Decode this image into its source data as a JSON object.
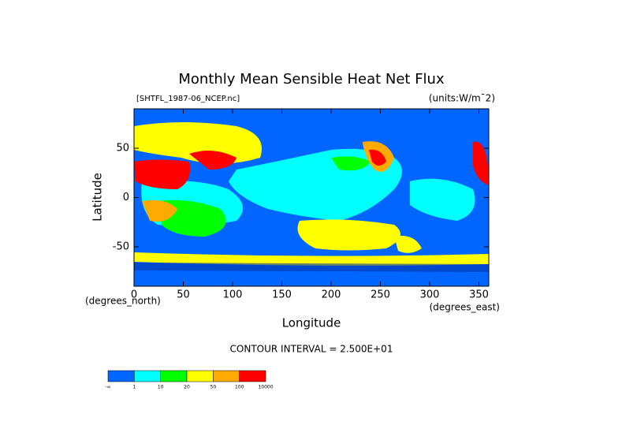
{
  "chart_data": {
    "type": "contour-map",
    "title": "Monthly Mean Sensible Heat Net Flux",
    "source": "[SHTFL_1987-06_NCEP.nc]",
    "units": "(units:W/m¯2)",
    "y_label": "Latitude",
    "x_label": "Longitude",
    "y_unit": "(degrees_north)",
    "x_unit": "(degrees_east)",
    "xlim": [
      0,
      360
    ],
    "ylim": [
      -90,
      90
    ],
    "xticks": [
      0,
      50,
      100,
      150,
      200,
      250,
      300,
      350
    ],
    "yticks": [
      -50,
      0,
      50
    ],
    "contour_interval": "CONTOUR INTERVAL = 2.500E+01",
    "colorbar": {
      "levels": [
        "-∞",
        "1",
        "10",
        "20",
        "50",
        "100",
        "10000"
      ],
      "colors": [
        "#0066ff",
        "#00ffff",
        "#00ff00",
        "#ffff00",
        "#ffaa00",
        "#ff0000"
      ]
    }
  }
}
